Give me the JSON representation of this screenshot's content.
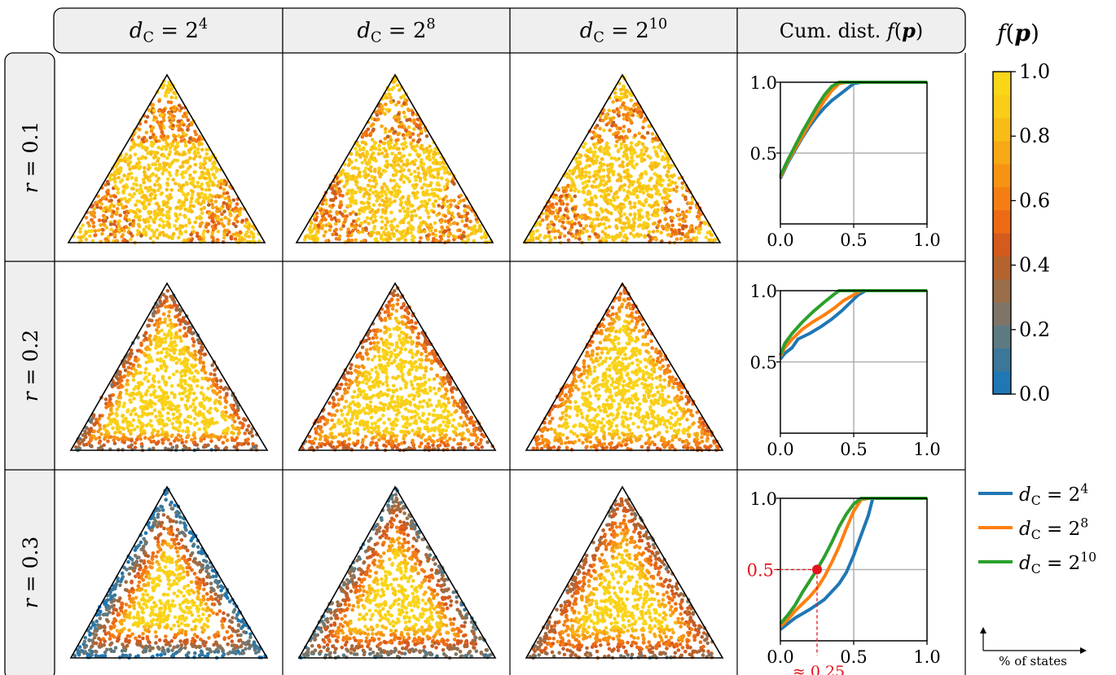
{
  "column_headers": [
    {
      "sym": "d",
      "sub": "C",
      "eq": "= 2",
      "sup": "4"
    },
    {
      "sym": "d",
      "sub": "C",
      "eq": "= 2",
      "sup": "8"
    },
    {
      "sym": "d",
      "sub": "C",
      "eq": "= 2",
      "sup": "10"
    },
    {
      "pre": "Cum. dist.",
      "fsym": "f",
      "arg": "p"
    }
  ],
  "row_headers": [
    "r = 0.1",
    "r = 0.2",
    "r = 0.3"
  ],
  "colorbar": {
    "title_f": "f",
    "title_p": "p",
    "ticks": [
      "0.0",
      "0.2",
      "0.4",
      "0.6",
      "0.8",
      "1.0"
    ],
    "colors": [
      "#1f77b4",
      "#3a7799",
      "#5d7a82",
      "#7e7566",
      "#9a6e4a",
      "#b5632e",
      "#d45a1e",
      "#ec6a14",
      "#f47e13",
      "#f79313",
      "#f7a815",
      "#f8bc16",
      "#f9cd18",
      "#fad619"
    ]
  },
  "legend": [
    {
      "sym": "d",
      "sub": "C",
      "eq": "= 2",
      "sup": "4",
      "color": "#1f77b4"
    },
    {
      "sym": "d",
      "sub": "C",
      "eq": "= 2",
      "sup": "8",
      "color": "#ff7f0e"
    },
    {
      "sym": "d",
      "sub": "C",
      "eq": "= 2",
      "sup": "10",
      "color": "#2ca02c"
    }
  ],
  "axes_note": "% of states",
  "annotation": {
    "y_label": "0.5",
    "x_label": "≈ 0.25",
    "color": "#e3141b"
  },
  "chart_data": [
    {
      "type": "line",
      "row": "r = 0.1",
      "xlim": [
        0,
        1
      ],
      "ylim": [
        0,
        1
      ],
      "xticks": [
        "0.0",
        "0.5",
        "1.0"
      ],
      "yticks": [
        "0.5",
        "1.0"
      ],
      "series": [
        {
          "name": "d_C = 2^4",
          "color": "#1f77b4",
          "x": [
            0,
            0.05,
            0.1,
            0.15,
            0.2,
            0.25,
            0.3,
            0.35,
            0.4,
            0.45,
            0.5,
            0.55,
            0.6,
            0.8,
            1.0
          ],
          "y": [
            0.32,
            0.43,
            0.52,
            0.61,
            0.69,
            0.76,
            0.82,
            0.87,
            0.91,
            0.95,
            0.99,
            1.0,
            1.0,
            1.0,
            1.0
          ]
        },
        {
          "name": "d_C = 2^8",
          "color": "#ff7f0e",
          "x": [
            0,
            0.05,
            0.1,
            0.15,
            0.2,
            0.25,
            0.3,
            0.35,
            0.4,
            0.45,
            0.5,
            0.6,
            0.8,
            1.0
          ],
          "y": [
            0.33,
            0.44,
            0.53,
            0.62,
            0.71,
            0.79,
            0.87,
            0.94,
            0.99,
            1.0,
            1.0,
            1.0,
            1.0,
            1.0
          ]
        },
        {
          "name": "d_C = 2^10",
          "color": "#2ca02c",
          "x": [
            0,
            0.05,
            0.1,
            0.15,
            0.2,
            0.25,
            0.3,
            0.35,
            0.4,
            0.45,
            0.5,
            0.6,
            0.8,
            1.0
          ],
          "y": [
            0.34,
            0.45,
            0.55,
            0.65,
            0.74,
            0.83,
            0.91,
            0.97,
            1.0,
            1.0,
            1.0,
            1.0,
            1.0,
            1.0
          ]
        }
      ]
    },
    {
      "type": "line",
      "row": "r = 0.2",
      "xlim": [
        0,
        1
      ],
      "ylim": [
        0,
        1
      ],
      "xticks": [
        "0.0",
        "0.5",
        "1.0"
      ],
      "yticks": [
        "0.5",
        "1.0"
      ],
      "series": [
        {
          "name": "d_C = 2^4",
          "color": "#1f77b4",
          "x": [
            0,
            0.03,
            0.08,
            0.12,
            0.2,
            0.28,
            0.35,
            0.42,
            0.48,
            0.53,
            0.58,
            0.65,
            0.8,
            1.0
          ],
          "y": [
            0.52,
            0.56,
            0.6,
            0.66,
            0.7,
            0.75,
            0.8,
            0.86,
            0.92,
            0.97,
            1.0,
            1.0,
            1.0,
            1.0
          ]
        },
        {
          "name": "d_C = 2^8",
          "color": "#ff7f0e",
          "x": [
            0,
            0.03,
            0.08,
            0.15,
            0.22,
            0.3,
            0.37,
            0.43,
            0.5,
            0.55,
            0.62,
            0.8,
            1.0
          ],
          "y": [
            0.54,
            0.6,
            0.66,
            0.73,
            0.78,
            0.83,
            0.88,
            0.93,
            0.97,
            1.0,
            1.0,
            1.0,
            1.0
          ]
        },
        {
          "name": "d_C = 2^10",
          "color": "#2ca02c",
          "x": [
            0,
            0.03,
            0.08,
            0.15,
            0.22,
            0.3,
            0.36,
            0.4,
            0.5,
            0.8,
            1.0
          ],
          "y": [
            0.55,
            0.63,
            0.7,
            0.78,
            0.85,
            0.92,
            0.97,
            1.0,
            1.0,
            1.0,
            1.0
          ]
        }
      ]
    },
    {
      "type": "line",
      "row": "r = 0.3",
      "xlim": [
        0,
        1
      ],
      "ylim": [
        0,
        1
      ],
      "xticks": [
        "0.0",
        "0.5",
        "1.0"
      ],
      "yticks": [
        "0.5",
        "1.0"
      ],
      "series": [
        {
          "name": "d_C = 2^4",
          "color": "#1f77b4",
          "x": [
            0,
            0.05,
            0.1,
            0.2,
            0.3,
            0.4,
            0.45,
            0.5,
            0.55,
            0.6,
            0.63,
            0.7,
            0.8,
            1.0
          ],
          "y": [
            0.08,
            0.12,
            0.16,
            0.22,
            0.29,
            0.4,
            0.48,
            0.6,
            0.74,
            0.88,
            1.0,
            1.0,
            1.0,
            1.0
          ]
        },
        {
          "name": "d_C = 2^8",
          "color": "#ff7f0e",
          "x": [
            0,
            0.05,
            0.1,
            0.2,
            0.25,
            0.3,
            0.35,
            0.4,
            0.45,
            0.5,
            0.55,
            0.6,
            0.8,
            1.0
          ],
          "y": [
            0.1,
            0.15,
            0.21,
            0.31,
            0.37,
            0.45,
            0.55,
            0.66,
            0.79,
            0.91,
            0.99,
            1.0,
            1.0,
            1.0
          ]
        },
        {
          "name": "d_C = 2^10",
          "color": "#2ca02c",
          "x": [
            0,
            0.05,
            0.1,
            0.15,
            0.2,
            0.25,
            0.3,
            0.35,
            0.4,
            0.45,
            0.5,
            0.55,
            0.6,
            0.8,
            1.0
          ],
          "y": [
            0.12,
            0.18,
            0.25,
            0.34,
            0.42,
            0.5,
            0.59,
            0.69,
            0.8,
            0.89,
            0.96,
            1.0,
            1.0,
            1.0,
            1.0
          ]
        }
      ],
      "marker": {
        "x": 0.25,
        "y": 0.5
      }
    }
  ]
}
